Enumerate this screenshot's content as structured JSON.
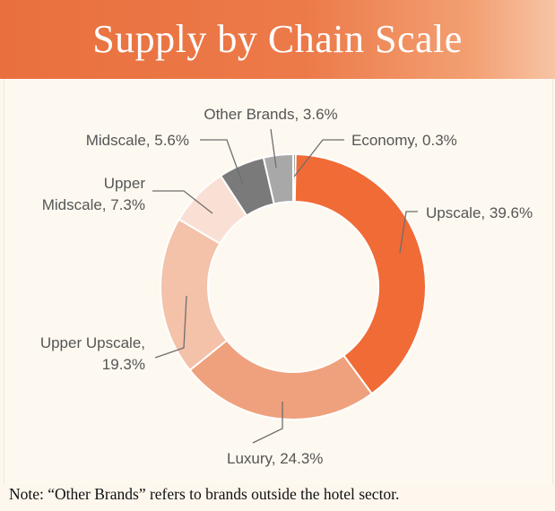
{
  "header": {
    "title": "Supply by Chain Scale"
  },
  "footer": {
    "note": "Note: “Other Brands” refers to brands outside the hotel sector."
  },
  "chart_data": {
    "type": "pie",
    "style": "donut",
    "title": "Supply by Chain Scale",
    "categories": [
      "Economy",
      "Upscale",
      "Luxury",
      "Upper Upscale",
      "Upper Midscale",
      "Midscale",
      "Other Brands"
    ],
    "values": [
      0.3,
      39.6,
      24.3,
      19.3,
      7.3,
      5.6,
      3.6
    ],
    "unit": "%",
    "colors": [
      "#555555",
      "#f16b36",
      "#efa07c",
      "#f4c1a9",
      "#fae0d4",
      "#7a7a7a",
      "#a8a8a8"
    ],
    "labels": [
      {
        "lines": [
          "Economy, 0.3%"
        ]
      },
      {
        "lines": [
          "Upscale, 39.6%"
        ]
      },
      {
        "lines": [
          "Luxury, 24.3%"
        ]
      },
      {
        "lines": [
          "Upper Upscale,",
          "19.3%"
        ]
      },
      {
        "lines": [
          "Upper",
          "Midscale, 7.3%"
        ]
      },
      {
        "lines": [
          "Midscale, 5.6%"
        ]
      },
      {
        "lines": [
          "Other Brands, 3.6%"
        ]
      }
    ]
  }
}
